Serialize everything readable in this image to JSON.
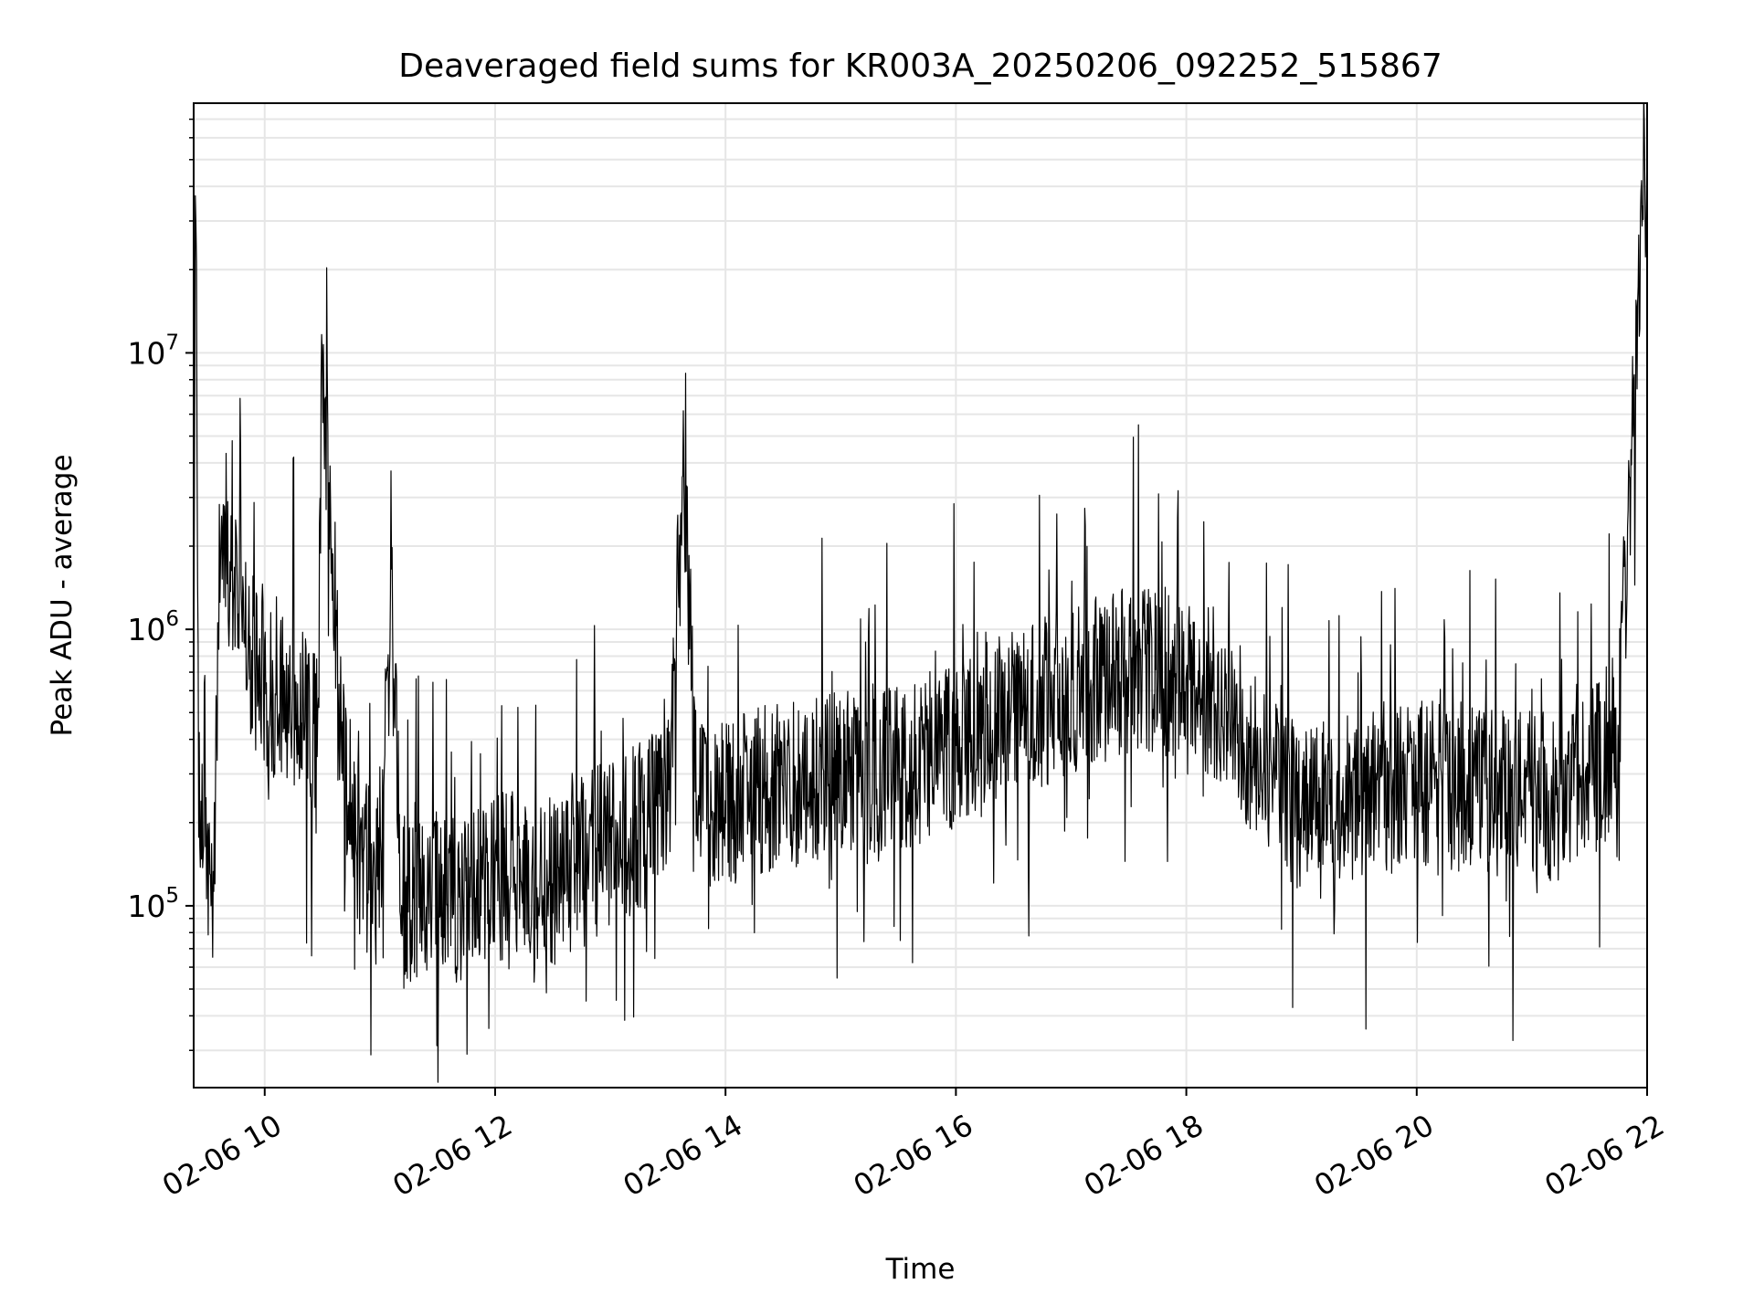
{
  "chart_data": {
    "type": "line",
    "title": "Deaveraged field sums for KR003A_20250206_092252_515867",
    "xlabel": "Time",
    "ylabel": "Peak ADU - average",
    "xlim": [
      "2025-02-06 09:23",
      "2025-02-06 22:00"
    ],
    "ylim": [
      22000,
      80000000
    ],
    "yscale": "log",
    "grid": true,
    "x_ticks": [
      {
        "value": "2025-02-06 10:00",
        "label": "02-06 10"
      },
      {
        "value": "2025-02-06 12:00",
        "label": "02-06 12"
      },
      {
        "value": "2025-02-06 14:00",
        "label": "02-06 14"
      },
      {
        "value": "2025-02-06 16:00",
        "label": "02-06 16"
      },
      {
        "value": "2025-02-06 18:00",
        "label": "02-06 18"
      },
      {
        "value": "2025-02-06 20:00",
        "label": "02-06 20"
      },
      {
        "value": "2025-02-06 22:00",
        "label": "02-06 22"
      }
    ],
    "y_ticks": [
      {
        "value": 100000,
        "label": "10",
        "exponent": "5"
      },
      {
        "value": 1000000,
        "label": "10",
        "exponent": "6"
      },
      {
        "value": 10000000,
        "label": "10",
        "exponent": "7"
      }
    ],
    "line_color": "#000000",
    "x": [
      "2025-02-06 09:23",
      "2025-02-06 09:24",
      "2025-02-06 09:26",
      "2025-02-06 09:28",
      "2025-02-06 09:32",
      "2025-02-06 09:37",
      "2025-02-06 09:40",
      "2025-02-06 09:44",
      "2025-02-06 09:50",
      "2025-02-06 10:00",
      "2025-02-06 10:15",
      "2025-02-06 10:27",
      "2025-02-06 10:30",
      "2025-02-06 10:40",
      "2025-02-06 10:48",
      "2025-02-06 11:00",
      "2025-02-06 11:06",
      "2025-02-06 11:12",
      "2025-02-06 11:30",
      "2025-02-06 11:45",
      "2025-02-06 12:00",
      "2025-02-06 12:30",
      "2025-02-06 13:00",
      "2025-02-06 13:30",
      "2025-02-06 13:38",
      "2025-02-06 13:45",
      "2025-02-06 14:00",
      "2025-02-06 14:30",
      "2025-02-06 15:00",
      "2025-02-06 15:30",
      "2025-02-06 16:00",
      "2025-02-06 16:30",
      "2025-02-06 17:00",
      "2025-02-06 17:30",
      "2025-02-06 18:00",
      "2025-02-06 18:20",
      "2025-02-06 18:40",
      "2025-02-06 19:00",
      "2025-02-06 19:30",
      "2025-02-06 20:00",
      "2025-02-06 20:30",
      "2025-02-06 20:48",
      "2025-02-06 21:00",
      "2025-02-06 21:20",
      "2025-02-06 21:38",
      "2025-02-06 21:45",
      "2025-02-06 22:00"
    ],
    "y": [
      400000,
      37000000,
      250000,
      150000,
      100000,
      1200000,
      2500000,
      1300000,
      900000,
      600000,
      550000,
      400000,
      10000000,
      450000,
      150000,
      120000,
      1200000,
      100000,
      110000,
      100000,
      130000,
      120000,
      170000,
      220000,
      3600000,
      240000,
      240000,
      270000,
      300000,
      320000,
      380000,
      500000,
      600000,
      700000,
      700000,
      550000,
      300000,
      220000,
      250000,
      280000,
      270000,
      250000,
      260000,
      240000,
      350000,
      450000,
      55000000
    ]
  }
}
